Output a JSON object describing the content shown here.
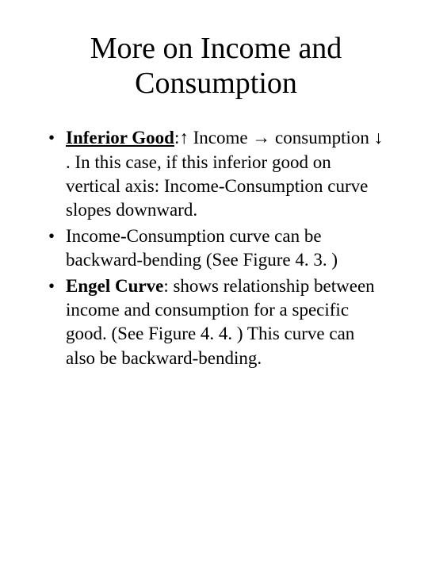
{
  "title": "More on Income and Consumption",
  "bullets": [
    {
      "prefix_bold_underline": "Inferior Good",
      "rest": ":↑ Income → consumption ↓ .  In this case, if this inferior good on vertical axis: Income-Consumption curve slopes downward."
    },
    {
      "plain": "Income-Consumption curve can be backward-bending (See Figure 4. 3. )"
    },
    {
      "prefix_bold": "Engel Curve",
      "rest": ":  shows relationship between income and consumption for a specific good.  (See Figure 4. 4. ) This curve can also be backward-bending."
    }
  ],
  "colors": {
    "background": "#ffffff",
    "text": "#000000"
  },
  "typography": {
    "title_fontsize": 38,
    "body_fontsize": 23,
    "font_family": "Times New Roman"
  }
}
